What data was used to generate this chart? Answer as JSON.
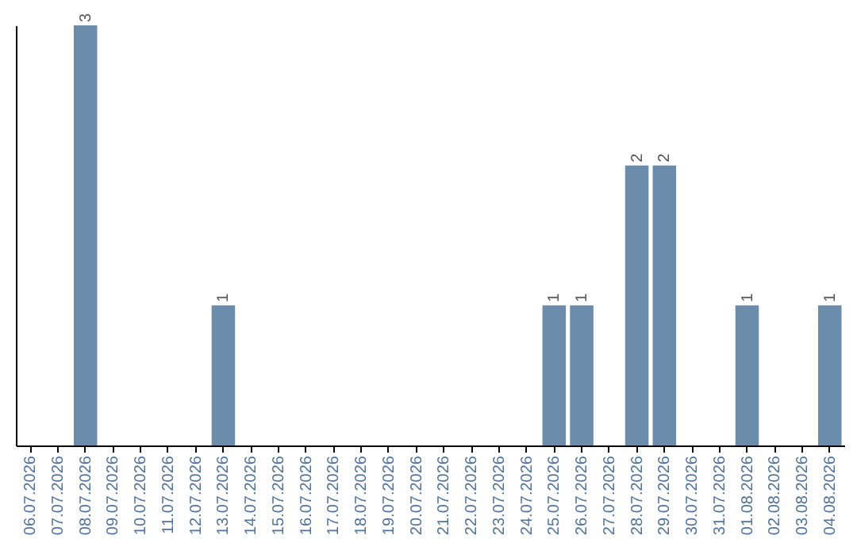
{
  "chart_data": {
    "type": "bar",
    "categories": [
      "06.07.2026",
      "07.07.2026",
      "08.07.2026",
      "09.07.2026",
      "10.07.2026",
      "11.07.2026",
      "12.07.2026",
      "13.07.2026",
      "14.07.2026",
      "15.07.2026",
      "16.07.2026",
      "17.07.2026",
      "18.07.2026",
      "19.07.2026",
      "20.07.2026",
      "21.07.2026",
      "22.07.2026",
      "23.07.2026",
      "24.07.2026",
      "25.07.2026",
      "26.07.2026",
      "27.07.2026",
      "28.07.2026",
      "29.07.2026",
      "30.07.2026",
      "31.07.2026",
      "01.08.2026",
      "02.08.2026",
      "03.08.2026",
      "04.08.2026"
    ],
    "values": [
      null,
      null,
      3,
      null,
      null,
      null,
      null,
      1,
      null,
      null,
      null,
      null,
      null,
      null,
      null,
      null,
      null,
      null,
      null,
      1,
      1,
      null,
      2,
      2,
      null,
      null,
      1,
      null,
      null,
      1
    ],
    "color": "#6b8cab",
    "data_labels": true,
    "grid": false,
    "tick_labels": "x"
  }
}
